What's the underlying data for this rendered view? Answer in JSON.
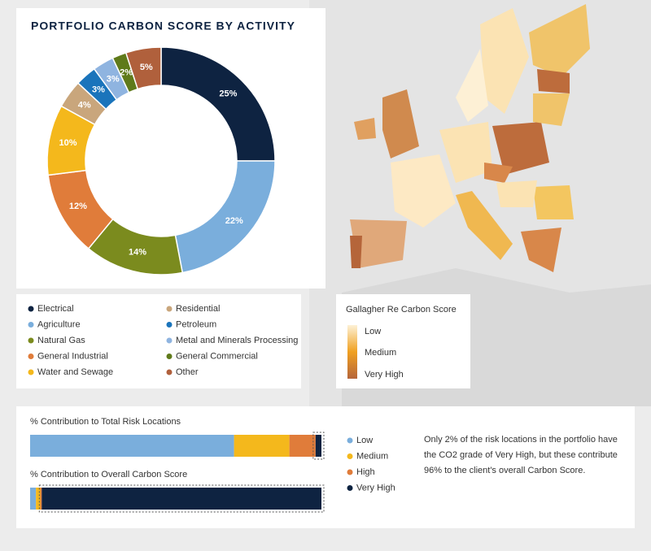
{
  "chart_data": [
    {
      "type": "pie",
      "title": "PORTFOLIO CARBON SCORE BY ACTIVITY",
      "categories": [
        "Electrical",
        "Agriculture",
        "Natural Gas",
        "General Industrial",
        "Water and Sewage",
        "Residential",
        "Petroleum",
        "Metal and Minerals Processing",
        "General Commercial",
        "Other"
      ],
      "values": [
        25,
        22,
        14,
        12,
        10,
        4,
        3,
        3,
        2,
        5
      ],
      "value_labels": [
        "25%",
        "22%",
        "14%",
        "12%",
        "10%",
        "4%",
        "3%",
        "3%",
        "2%",
        "5%"
      ],
      "colors": [
        "#0e2341",
        "#7aaedc",
        "#7b8b1e",
        "#e07c3a",
        "#f4b81c",
        "#c9a67c",
        "#1a74bb",
        "#8fb4e0",
        "#5f7a1a",
        "#b0603c"
      ]
    },
    {
      "type": "stacked-bar",
      "categories": [
        "% Contribution to Total Risk Locations",
        "% Contribution to Overall Carbon Score"
      ],
      "series": [
        {
          "name": "Low",
          "color": "#7aaedc",
          "values": [
            70,
            2
          ]
        },
        {
          "name": "Medium",
          "color": "#f4b81c",
          "values": [
            19,
            1.5
          ]
        },
        {
          "name": "High",
          "color": "#e07c3a",
          "values": [
            9,
            0.5
          ]
        },
        {
          "name": "Very High",
          "color": "#0e2341",
          "values": [
            2,
            96
          ]
        }
      ],
      "xlim": [
        0,
        100
      ],
      "annotation": "Only 2% of the risk locations in the portfolio have the CO2 grade of Very High, but these contribute 96% to the client's overall Carbon Score."
    }
  ],
  "map_legend": {
    "title": "Gallagher Re Carbon Score",
    "labels": [
      "Low",
      "Medium",
      "Very High"
    ]
  }
}
